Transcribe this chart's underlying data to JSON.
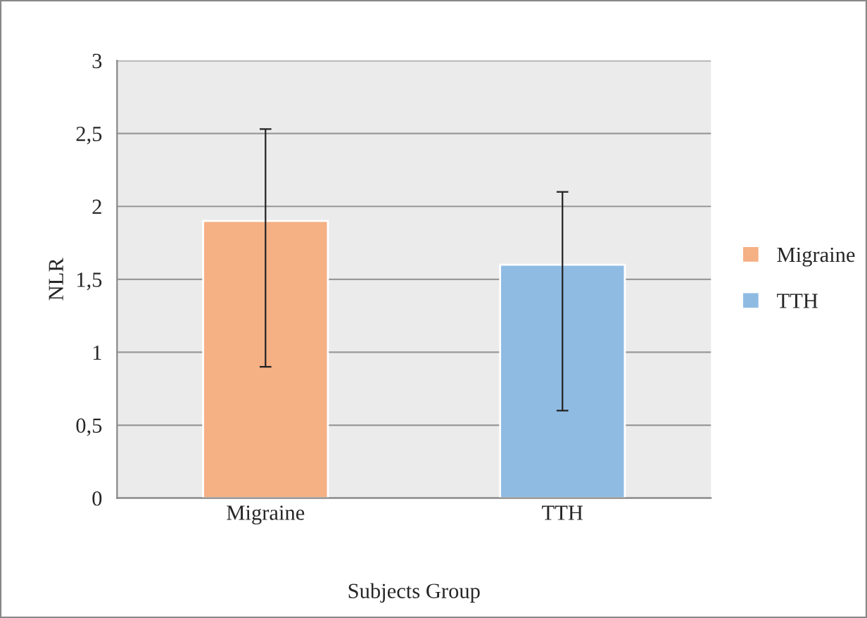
{
  "chart_data": {
    "type": "bar",
    "categories": [
      "Migraine",
      "TTH"
    ],
    "series": [
      {
        "name": "Migraine",
        "color": "#f5b084",
        "values": [
          1.9,
          null
        ],
        "errors": [
          [
            0.9,
            2.53
          ],
          null
        ]
      },
      {
        "name": "TTH",
        "color": "#8fbbe3",
        "values": [
          null,
          1.6
        ],
        "errors": [
          null,
          [
            0.6,
            2.1
          ]
        ]
      }
    ],
    "xlabel": "Subjects Group",
    "ylabel": "NLR",
    "ylim": [
      0,
      3
    ],
    "yticks": [
      0,
      {
        "value": 0.5,
        "label": "0,5"
      },
      1,
      {
        "value": 1.5,
        "label": "1,5"
      },
      2,
      {
        "value": 2.5,
        "label": "2,5"
      },
      3
    ],
    "grid": "y",
    "legend": "right"
  }
}
